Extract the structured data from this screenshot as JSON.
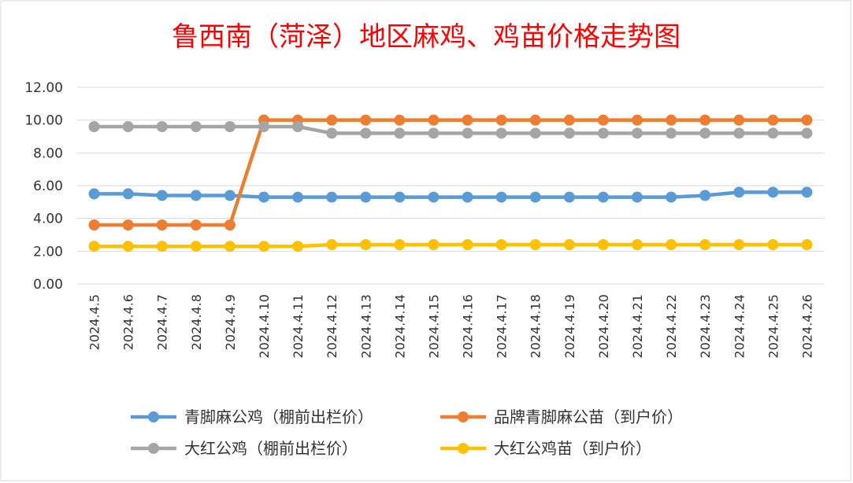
{
  "chart_data": {
    "type": "line",
    "title": "鲁西南（菏泽）地区麻鸡、鸡苗价格走势图",
    "xlabel": "",
    "ylabel": "",
    "ylim": [
      0,
      12
    ],
    "yticks": [
      "0.00",
      "2.00",
      "4.00",
      "6.00",
      "8.00",
      "10.00",
      "12.00"
    ],
    "grid": true,
    "legend_position": "bottom",
    "categories": [
      "2024.4.5",
      "2024.4.6",
      "2024.4.7",
      "2024.4.8",
      "2024.4.9",
      "2024.4.10",
      "2024.4.11",
      "2024.4.12",
      "2024.4.13",
      "2024.4.14",
      "2024.4.15",
      "2024.4.16",
      "2024.4.17",
      "2024.4.18",
      "2024.4.19",
      "2024.4.20",
      "2024.4.21",
      "2024.4.22",
      "2024.4.23",
      "2024.4.24",
      "2024.4.25",
      "2024.4.26"
    ],
    "series": [
      {
        "name": "青脚麻公鸡（棚前出栏价）",
        "color": "#5b9bd5",
        "values": [
          5.5,
          5.5,
          5.4,
          5.4,
          5.4,
          5.3,
          5.3,
          5.3,
          5.3,
          5.3,
          5.3,
          5.3,
          5.3,
          5.3,
          5.3,
          5.3,
          5.3,
          5.3,
          5.4,
          5.6,
          5.6,
          5.6
        ]
      },
      {
        "name": "品牌青脚麻公苗（到户价）",
        "color": "#ed7d31",
        "values": [
          3.6,
          3.6,
          3.6,
          3.6,
          3.6,
          10.0,
          10.0,
          10.0,
          10.0,
          10.0,
          10.0,
          10.0,
          10.0,
          10.0,
          10.0,
          10.0,
          10.0,
          10.0,
          10.0,
          10.0,
          10.0,
          10.0
        ]
      },
      {
        "name": "大红公鸡（棚前出栏价）",
        "color": "#a5a5a5",
        "values": [
          9.6,
          9.6,
          9.6,
          9.6,
          9.6,
          9.6,
          9.6,
          9.2,
          9.2,
          9.2,
          9.2,
          9.2,
          9.2,
          9.2,
          9.2,
          9.2,
          9.2,
          9.2,
          9.2,
          9.2,
          9.2,
          9.2
        ]
      },
      {
        "name": "大红公鸡苗（到户价）",
        "color": "#ffc000",
        "values": [
          2.3,
          2.3,
          2.3,
          2.3,
          2.3,
          2.3,
          2.3,
          2.4,
          2.4,
          2.4,
          2.4,
          2.4,
          2.4,
          2.4,
          2.4,
          2.4,
          2.4,
          2.4,
          2.4,
          2.4,
          2.4,
          2.4
        ]
      }
    ]
  }
}
